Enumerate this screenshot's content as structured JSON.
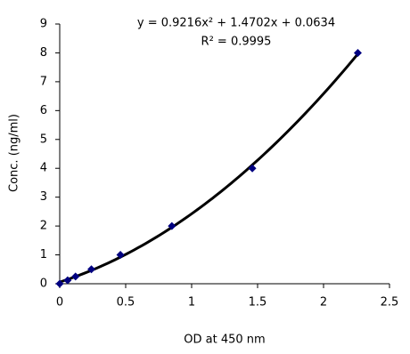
{
  "chart_data": {
    "type": "scatter",
    "x": [
      0,
      0.06,
      0.12,
      0.24,
      0.46,
      0.85,
      1.46,
      2.26
    ],
    "values": [
      0,
      0.12,
      0.25,
      0.5,
      1,
      2,
      4,
      8
    ],
    "color": "#000080",
    "trendline_color": "#000000",
    "xlim": [
      0,
      2.5
    ],
    "xticks": [
      0,
      0.5,
      1,
      1.5,
      2,
      2.5
    ],
    "ylim": [
      0,
      9
    ],
    "yticks": [
      0,
      1,
      2,
      3,
      4,
      5,
      6,
      7,
      8,
      9
    ],
    "xlabel": "OD at 450 nm",
    "ylabel": "Conc. (ng/ml)",
    "annotations": [
      "y = 0.9216x² + 1.4702x + 0.0634",
      "R² = 0.9995"
    ],
    "grid": false
  }
}
